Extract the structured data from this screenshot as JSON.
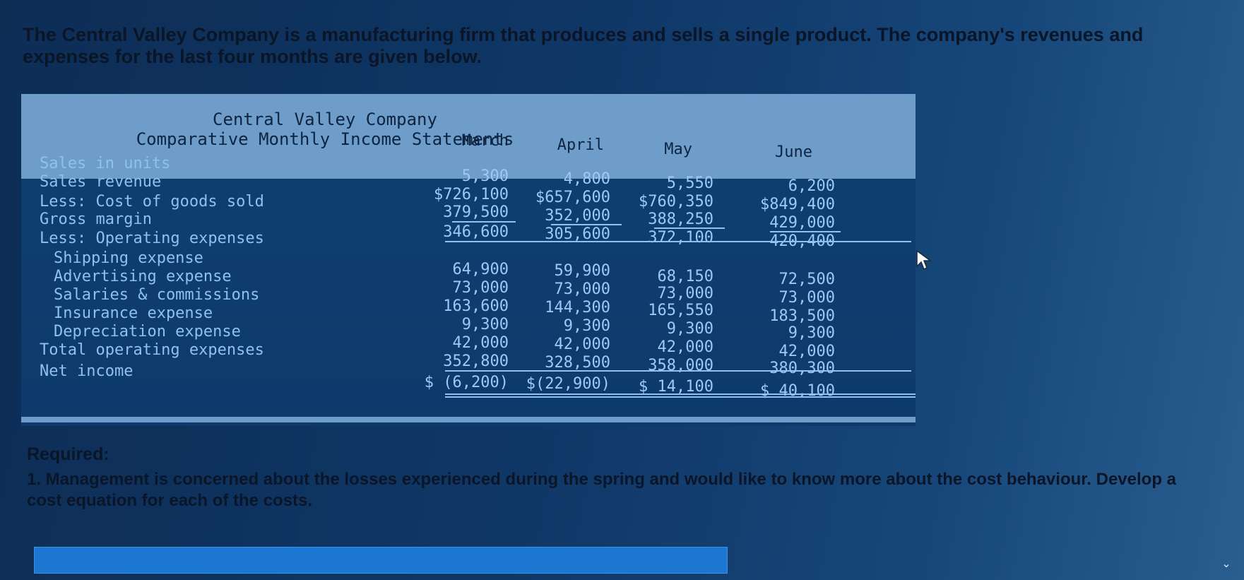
{
  "intro": "The Central Valley Company is a manufacturing firm that produces and sells a single product. The company's revenues and expenses for the last four months are given below.",
  "statement": {
    "company": "Central Valley Company",
    "title": "Comparative Monthly Income Statements",
    "columns": [
      "March",
      "April",
      "May",
      "June"
    ],
    "rows": [
      {
        "label": "Sales in units",
        "values": [
          "5,300",
          "4,800",
          "5,550",
          "6,200"
        ]
      },
      {
        "label": "Sales revenue",
        "values": [
          "$726,100",
          "$657,600",
          "$760,350",
          "$849,400"
        ]
      },
      {
        "label": "Less: Cost of goods sold",
        "values": [
          "379,500",
          "352,000",
          "388,250",
          "429,000"
        ]
      },
      {
        "label": "Gross margin",
        "values": [
          "346,600",
          "305,600",
          "372,100",
          "420,400"
        ]
      },
      {
        "label": "Less: Operating expenses",
        "values": []
      },
      {
        "label": "Shipping expense",
        "values": [
          "64,900",
          "59,900",
          "68,150",
          "72,500"
        ]
      },
      {
        "label": "Advertising expense",
        "values": [
          "73,000",
          "73,000",
          "73,000",
          "73,000"
        ]
      },
      {
        "label": "Salaries & commissions",
        "values": [
          "163,600",
          "144,300",
          "165,550",
          "183,500"
        ]
      },
      {
        "label": "Insurance expense",
        "values": [
          "9,300",
          "9,300",
          "9,300",
          "9,300"
        ]
      },
      {
        "label": "Depreciation expense",
        "values": [
          "42,000",
          "42,000",
          "42,000",
          "42,000"
        ]
      },
      {
        "label": "Total operating expenses",
        "values": [
          "352,800",
          "328,500",
          "358,000",
          "380,300"
        ]
      },
      {
        "label": "Net income",
        "values": [
          "$ (6,200)",
          "$(22,900)",
          "$ 14,100",
          "$ 40,100"
        ]
      }
    ]
  },
  "required": {
    "heading": "Required:",
    "question": "1. Management is concerned about the losses experienced during the spring and would like to know more about the cost behaviour. Develop a cost equation for each of the costs."
  },
  "icons": {
    "cursor": "mouse-pointer-icon",
    "scroll": "chevron-down-icon"
  },
  "colors": {
    "table_bg": "#0f3f72",
    "header_band": "#6f9dc9",
    "table_text": "#8fc0ee",
    "answer_bar": "#1b77d1"
  }
}
